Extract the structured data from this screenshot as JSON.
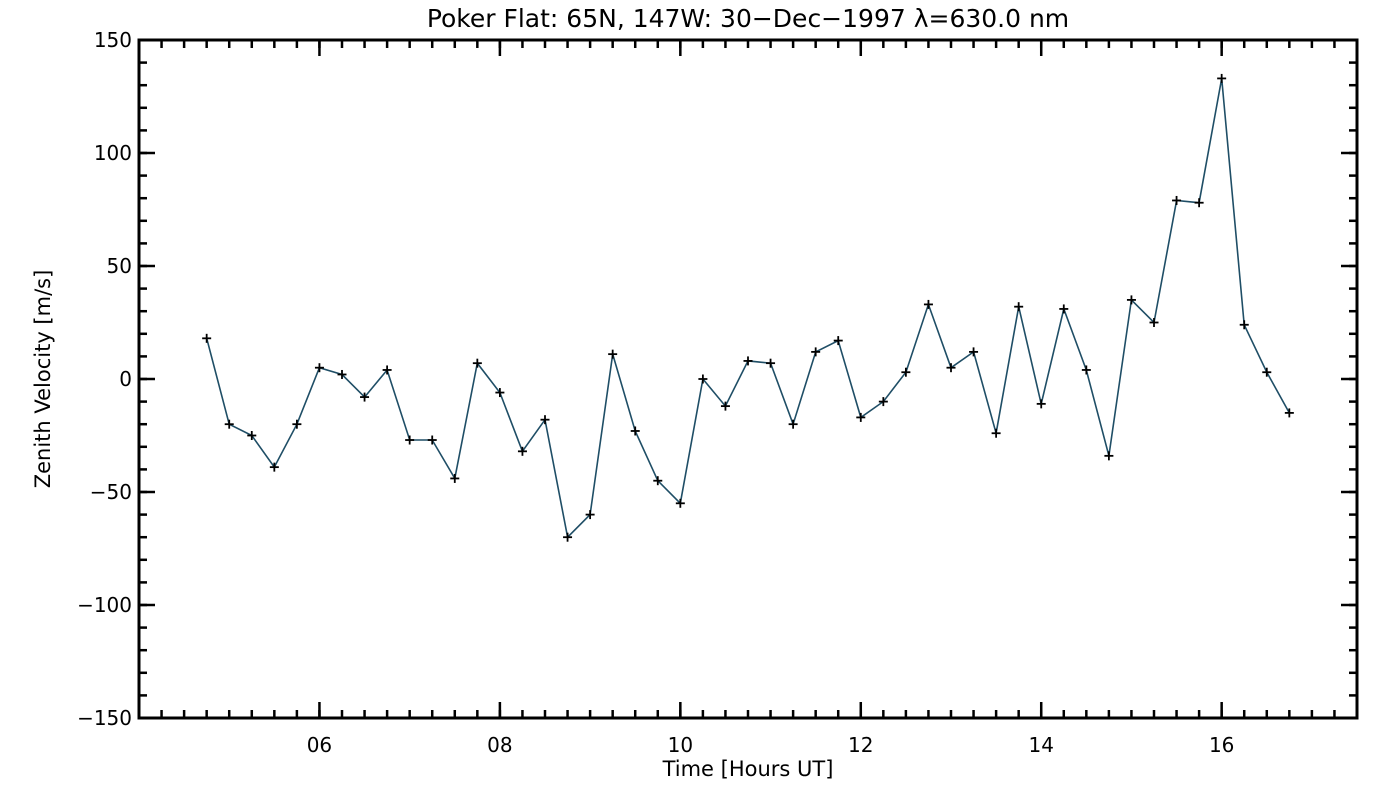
{
  "chart_data": {
    "type": "line",
    "title": "Poker Flat: 65N, 147W: 30−Dec−1997 λ=630.0 nm",
    "xlabel": "Time [Hours UT]",
    "ylabel": "Zenith Velocity [m/s]",
    "xlim": [
      4,
      17.5
    ],
    "ylim": [
      -150,
      150
    ],
    "x_ticks": [
      6,
      8,
      10,
      12,
      14,
      16
    ],
    "x_tick_labels": [
      "06",
      "08",
      "10",
      "12",
      "14",
      "16"
    ],
    "x_minor_step": 0.25,
    "y_ticks": [
      -150,
      -100,
      -50,
      0,
      50,
      100,
      150
    ],
    "y_tick_labels": [
      "−150",
      "−100",
      "−50",
      "0",
      "50",
      "100",
      "150"
    ],
    "y_minor_step": 10,
    "grid": false,
    "line_color": "#1f4e66",
    "marker": "+",
    "series": [
      {
        "x": [
          4.75,
          5.0,
          5.25,
          5.5,
          5.75,
          6.0,
          6.25,
          6.5,
          6.75,
          7.0,
          7.25,
          7.5,
          7.75,
          8.0,
          8.25,
          8.5,
          8.75,
          9.0,
          9.25,
          9.5,
          9.75,
          10.0,
          10.25,
          10.5,
          10.75,
          11.0,
          11.25,
          11.5,
          11.75,
          12.0,
          12.25,
          12.5,
          12.75,
          13.0,
          13.25,
          13.5,
          13.75,
          14.0,
          14.25,
          14.5,
          14.75,
          15.0,
          15.25,
          15.5,
          15.75,
          16.0,
          16.25,
          16.5,
          16.75
        ],
        "y": [
          18,
          -20,
          -25,
          -39,
          -20,
          5,
          2,
          -8,
          4,
          -27,
          -27,
          -44,
          7,
          -6,
          -32,
          -18,
          -70,
          -60,
          11,
          -23,
          -45,
          -55,
          0,
          -12,
          8,
          7,
          -20,
          12,
          17,
          -17,
          -10,
          3,
          33,
          5,
          12,
          -24,
          32,
          -11,
          31,
          4,
          -34,
          35,
          25,
          79,
          78,
          133,
          24,
          3,
          -15
        ]
      }
    ]
  }
}
